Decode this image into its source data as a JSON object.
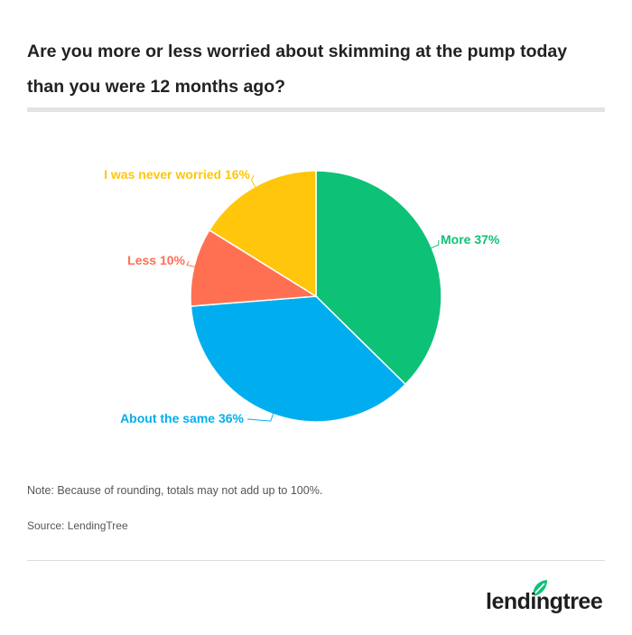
{
  "title": "Are you more or less worried about skimming at the pump today than you were 12 months ago?",
  "chart_data": {
    "type": "pie",
    "title": "Are you more or less worried about skimming at the pump today than you were 12 months ago?",
    "slices": [
      {
        "label": "More 37%",
        "value": 37,
        "color": "#0dc276"
      },
      {
        "label": "About the same 36%",
        "value": 36,
        "color": "#00aeef"
      },
      {
        "label": "Less 10%",
        "value": 10,
        "color": "#ff7052"
      },
      {
        "label": "I was never worried 16%",
        "value": 16,
        "color": "#ffc60b"
      }
    ]
  },
  "note": "Note: Because of rounding, totals may not add up to 100%.",
  "source": "Source: LendingTree",
  "logo": {
    "text": "lendingtree",
    "icon": "leaf-icon",
    "color": "#0dc276"
  }
}
